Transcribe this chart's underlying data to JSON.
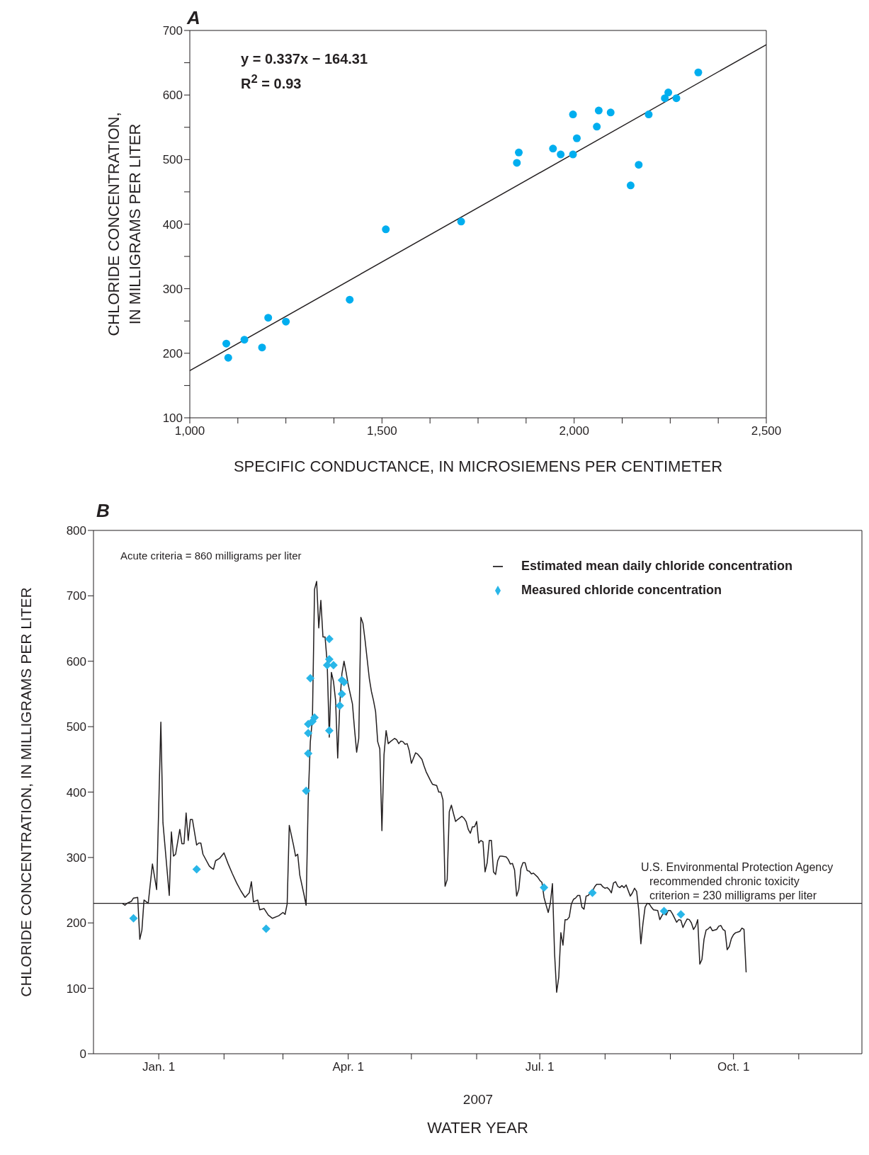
{
  "chart_data": [
    {
      "type": "scatter",
      "title": "A",
      "xlabel": "SPECIFIC CONDUCTANCE, IN MICROSIEMENS PER CENTIMETER",
      "ylabel": "CHLORIDE CONCENTRATION,\nIN MILLIGRAMS PER LITER",
      "xlim": [
        1000,
        2500
      ],
      "xticks": [
        {
          "value": 1000,
          "label": "1,000"
        },
        {
          "value": 1125,
          "label": null
        },
        {
          "value": 1250,
          "label": null
        },
        {
          "value": 1375,
          "label": null
        },
        {
          "value": 1500,
          "label": "1,500"
        },
        {
          "value": 1625,
          "label": null
        },
        {
          "value": 1750,
          "label": null
        },
        {
          "value": 1875,
          "label": null
        },
        {
          "value": 2000,
          "label": "2,000"
        },
        {
          "value": 2125,
          "label": null
        },
        {
          "value": 2250,
          "label": null
        },
        {
          "value": 2375,
          "label": null
        },
        {
          "value": 2500,
          "label": "2,500"
        }
      ],
      "ylim": [
        100,
        700
      ],
      "yticks": [
        100,
        {
          "value": 150,
          "label": null
        },
        200,
        {
          "value": 250,
          "label": null
        },
        300,
        {
          "value": 350,
          "label": null
        },
        400,
        {
          "value": 450,
          "label": null
        },
        500,
        {
          "value": 550,
          "label": null
        },
        600,
        {
          "value": 650,
          "label": null
        },
        700
      ],
      "legend": false,
      "annotations": [
        "y = 0.337x − 164.31",
        "R$^{2}$ = 0.93"
      ],
      "series": [
        {
          "color": "#00aeef",
          "marker": "circle",
          "x": [
            1095,
            1100,
            1142,
            1188,
            1204,
            1250,
            1416,
            1510,
            1706,
            1851,
            1856,
            1945,
            1965,
            1997,
            1997,
            2007,
            2059,
            2064,
            2095,
            2147,
            2168,
            2194,
            2236,
            2245,
            2266,
            2323
          ],
          "values": [
            215,
            193,
            221,
            209,
            255,
            249,
            283,
            392,
            404,
            495,
            511,
            517,
            508,
            508,
            570,
            533,
            551,
            576,
            573,
            460,
            492,
            570,
            595,
            604,
            595,
            635
          ]
        },
        {
          "type": "line",
          "color": "#231f20",
          "marker": "none",
          "x": [
            1000,
            2500
          ],
          "values": [
            173,
            678
          ]
        }
      ]
    },
    {
      "type": "line",
      "title": "B",
      "xlabel": "WATER YEAR",
      "ylabel": "CHLORIDE CONCENTRATION, IN MILLIGRAMS PER LITER",
      "xlim": [
        "2006-12-01",
        "2007-12-01"
      ],
      "xticks": [
        {
          "value": "2007-01-01",
          "label": "Jan. 1"
        },
        {
          "value": "2007-02-01",
          "label": null
        },
        {
          "value": "2007-03-01",
          "label": null
        },
        {
          "value": "2007-04-01",
          "label": "Apr. 1"
        },
        {
          "value": "2007-05-01",
          "label": null
        },
        {
          "value": "2007-06-01",
          "label": null
        },
        {
          "value": "2007-07-01",
          "label": "Jul. 1"
        },
        {
          "value": "2007-08-01",
          "label": null
        },
        {
          "value": "2007-09-01",
          "label": null
        },
        {
          "value": "2007-10-01",
          "label": "Oct. 1"
        },
        {
          "value": "2007-11-01",
          "label": null
        }
      ],
      "ylim": [
        0,
        800
      ],
      "yticks": [
        0,
        100,
        200,
        300,
        400,
        500,
        600,
        700,
        800
      ],
      "legend": "top right",
      "annotations": [
        "Acute criteria = 860 milligrams per liter",
        "2007"
      ],
      "ref_lines": [
        {
          "axis": "y",
          "value": 230,
          "label": "U.S. Environmental Protection Agency\nrecommended chronic toxicity\ncriterion = 230 milligrams per liter",
          "color": "#231f20"
        }
      ],
      "series": [
        {
          "name": "Estimated mean daily chloride concentration",
          "color": "#231f20",
          "marker": "none",
          "x": [
            "2006-12-15",
            "2006-12-16",
            "2006-12-17",
            "2006-12-19",
            "2006-12-20",
            "2006-12-22",
            "2006-12-23",
            "2006-12-24",
            "2006-12-25",
            "2006-12-27",
            "2006-12-29",
            "2006-12-31",
            "2007-01-02",
            "2007-01-03",
            "2007-01-06",
            "2007-01-07",
            "2007-01-08",
            "2007-01-09",
            "2007-01-11",
            "2007-01-12",
            "2007-01-13",
            "2007-01-14",
            "2007-01-15",
            "2007-01-16",
            "2007-01-17",
            "2007-01-19",
            "2007-01-20",
            "2007-01-21",
            "2007-01-22",
            "2007-01-25",
            "2007-01-26",
            "2007-01-27",
            "2007-01-28",
            "2007-01-30",
            "2007-02-01",
            "2007-02-03",
            "2007-02-05",
            "2007-02-07",
            "2007-02-09",
            "2007-02-11",
            "2007-02-13",
            "2007-02-14",
            "2007-02-15",
            "2007-02-17",
            "2007-02-18",
            "2007-02-20",
            "2007-02-22",
            "2007-02-24",
            "2007-02-27",
            "2007-03-01",
            "2007-03-02",
            "2007-03-03",
            "2007-03-04",
            "2007-03-06",
            "2007-03-07",
            "2007-03-08",
            "2007-03-09",
            "2007-03-11",
            "2007-03-12",
            "2007-03-13",
            "2007-03-14",
            "2007-03-15",
            "2007-03-16",
            "2007-03-17",
            "2007-03-18",
            "2007-03-19",
            "2007-03-20",
            "2007-03-21",
            "2007-03-22",
            "2007-03-23",
            "2007-03-24",
            "2007-03-25",
            "2007-03-26",
            "2007-03-27",
            "2007-03-28",
            "2007-03-29",
            "2007-03-30",
            "2007-03-31",
            "2007-04-01",
            "2007-04-03",
            "2007-04-04",
            "2007-04-05",
            "2007-04-06",
            "2007-04-07",
            "2007-04-08",
            "2007-04-09",
            "2007-04-10",
            "2007-04-11",
            "2007-04-12",
            "2007-04-13",
            "2007-04-14",
            "2007-04-15",
            "2007-04-16",
            "2007-04-17",
            "2007-04-18",
            "2007-04-19",
            "2007-04-20",
            "2007-04-21",
            "2007-04-23",
            "2007-04-24",
            "2007-04-25",
            "2007-04-26",
            "2007-04-27",
            "2007-04-28",
            "2007-04-29",
            "2007-04-30",
            "2007-05-01",
            "2007-05-02",
            "2007-05-03",
            "2007-05-04",
            "2007-05-06",
            "2007-05-07",
            "2007-05-08",
            "2007-05-10",
            "2007-05-11",
            "2007-05-13",
            "2007-05-14",
            "2007-05-15",
            "2007-05-16",
            "2007-05-17",
            "2007-05-18",
            "2007-05-19",
            "2007-05-20",
            "2007-05-21",
            "2007-05-22",
            "2007-05-23",
            "2007-05-25",
            "2007-05-26",
            "2007-05-27",
            "2007-05-28",
            "2007-05-29",
            "2007-05-30",
            "2007-05-31",
            "2007-06-01",
            "2007-06-02",
            "2007-06-03",
            "2007-06-04",
            "2007-06-05",
            "2007-06-06",
            "2007-06-07",
            "2007-06-08",
            "2007-06-09",
            "2007-06-10",
            "2007-06-11",
            "2007-06-12",
            "2007-06-13",
            "2007-06-15",
            "2007-06-16",
            "2007-06-17",
            "2007-06-18",
            "2007-06-19",
            "2007-06-20",
            "2007-06-21",
            "2007-06-22",
            "2007-06-23",
            "2007-06-24",
            "2007-06-25",
            "2007-06-26",
            "2007-06-27",
            "2007-06-28",
            "2007-06-30",
            "2007-07-01",
            "2007-07-02",
            "2007-07-03",
            "2007-07-04",
            "2007-07-05",
            "2007-07-06",
            "2007-07-07",
            "2007-07-08",
            "2007-07-09",
            "2007-07-10",
            "2007-07-11",
            "2007-07-12",
            "2007-07-13",
            "2007-07-14",
            "2007-07-15",
            "2007-07-16",
            "2007-07-17",
            "2007-07-18",
            "2007-07-19",
            "2007-07-20",
            "2007-07-21",
            "2007-07-22",
            "2007-07-23",
            "2007-07-24",
            "2007-07-25",
            "2007-07-26",
            "2007-07-27",
            "2007-07-28",
            "2007-07-30",
            "2007-07-31",
            "2007-08-01",
            "2007-08-02",
            "2007-08-03",
            "2007-08-04",
            "2007-08-05",
            "2007-08-06",
            "2007-08-07",
            "2007-08-08",
            "2007-08-09",
            "2007-08-10",
            "2007-08-11",
            "2007-08-13",
            "2007-08-14",
            "2007-08-15",
            "2007-08-16",
            "2007-08-17",
            "2007-08-18",
            "2007-08-19",
            "2007-08-20",
            "2007-08-21",
            "2007-08-22",
            "2007-08-23",
            "2007-08-24",
            "2007-08-26",
            "2007-08-27",
            "2007-08-28",
            "2007-08-29",
            "2007-08-30",
            "2007-08-31",
            "2007-09-01",
            "2007-09-02",
            "2007-09-04",
            "2007-09-05",
            "2007-09-06",
            "2007-09-07",
            "2007-09-08",
            "2007-09-09",
            "2007-09-10",
            "2007-09-11",
            "2007-09-12",
            "2007-09-13",
            "2007-09-14",
            "2007-09-15",
            "2007-09-16",
            "2007-09-17",
            "2007-09-18",
            "2007-09-19",
            "2007-09-20",
            "2007-09-21",
            "2007-09-23",
            "2007-09-24",
            "2007-09-25",
            "2007-09-26",
            "2007-09-27",
            "2007-09-28",
            "2007-09-29",
            "2007-09-30",
            "2007-10-01",
            "2007-10-02",
            "2007-10-03",
            "2007-10-04",
            "2007-10-05",
            "2007-10-06",
            "2007-10-07"
          ],
          "values": [
            229,
            227,
            230,
            233,
            238,
            239,
            175,
            189,
            235,
            230,
            290,
            251,
            507,
            353,
            242,
            339,
            302,
            305,
            343,
            321,
            321,
            368,
            326,
            358,
            358,
            319,
            322,
            322,
            305,
            287,
            284,
            282,
            295,
            299,
            307,
            290,
            275,
            261,
            249,
            239,
            246,
            263,
            232,
            235,
            220,
            222,
            212,
            207,
            211,
            216,
            213,
            229,
            349,
            319,
            302,
            305,
            273,
            243,
            227,
            389,
            477,
            513,
            710,
            722,
            651,
            693,
            637,
            637,
            598,
            484,
            583,
            569,
            540,
            452,
            535,
            581,
            600,
            583,
            564,
            535,
            496,
            461,
            482,
            667,
            658,
            632,
            603,
            574,
            554,
            540,
            523,
            477,
            466,
            341,
            457,
            494,
            474,
            477,
            482,
            480,
            474,
            478,
            477,
            473,
            474,
            463,
            444,
            452,
            460,
            458,
            450,
            440,
            431,
            418,
            412,
            410,
            400,
            400,
            388,
            256,
            266,
            370,
            380,
            367,
            355,
            358,
            363,
            360,
            355,
            343,
            337,
            347,
            347,
            355,
            322,
            326,
            324,
            278,
            292,
            326,
            326,
            278,
            274,
            295,
            302,
            302,
            301,
            297,
            290,
            291,
            281,
            241,
            251,
            283,
            292,
            292,
            280,
            279,
            275,
            276,
            270,
            265,
            262,
            239,
            227,
            216,
            230,
            260,
            154,
            94,
            117,
            185,
            166,
            205,
            205,
            209,
            229,
            236,
            238,
            242,
            242,
            224,
            221,
            241,
            242,
            246,
            248,
            255,
            259,
            259,
            255,
            253,
            254,
            251,
            246,
            261,
            263,
            256,
            254,
            257,
            254,
            258,
            241,
            246,
            253,
            248,
            219,
            168,
            199,
            224,
            230,
            229,
            224,
            220,
            219,
            205,
            211,
            217,
            212,
            219,
            219,
            214,
            201,
            205,
            204,
            193,
            200,
            206,
            205,
            200,
            190,
            195,
            205,
            137,
            144,
            175,
            189,
            191,
            194,
            188,
            190,
            195,
            196,
            190,
            188,
            159,
            164,
            176,
            182,
            185,
            186,
            187,
            192,
            190,
            125
          ]
        },
        {
          "type": "scatter",
          "name": "Measured chloride concentration",
          "color": "#29b6e8",
          "marker": "diamond",
          "x": [
            "2006-12-20",
            "2007-01-19",
            "2007-02-21",
            "2007-03-12",
            "2007-03-13",
            "2007-03-13",
            "2007-03-13",
            "2007-03-14",
            "2007-03-15",
            "2007-03-16",
            "2007-03-22",
            "2007-03-23",
            "2007-03-23",
            "2007-03-23",
            "2007-03-25",
            "2007-03-28",
            "2007-03-29",
            "2007-03-29",
            "2007-03-30",
            "2007-07-03",
            "2007-07-26",
            "2007-08-29",
            "2007-09-06"
          ],
          "values": [
            207,
            282,
            191,
            402,
            459,
            490,
            504,
            574,
            508,
            514,
            594,
            634,
            603,
            494,
            594,
            532,
            550,
            571,
            568,
            254,
            246,
            218,
            213
          ]
        }
      ]
    }
  ]
}
